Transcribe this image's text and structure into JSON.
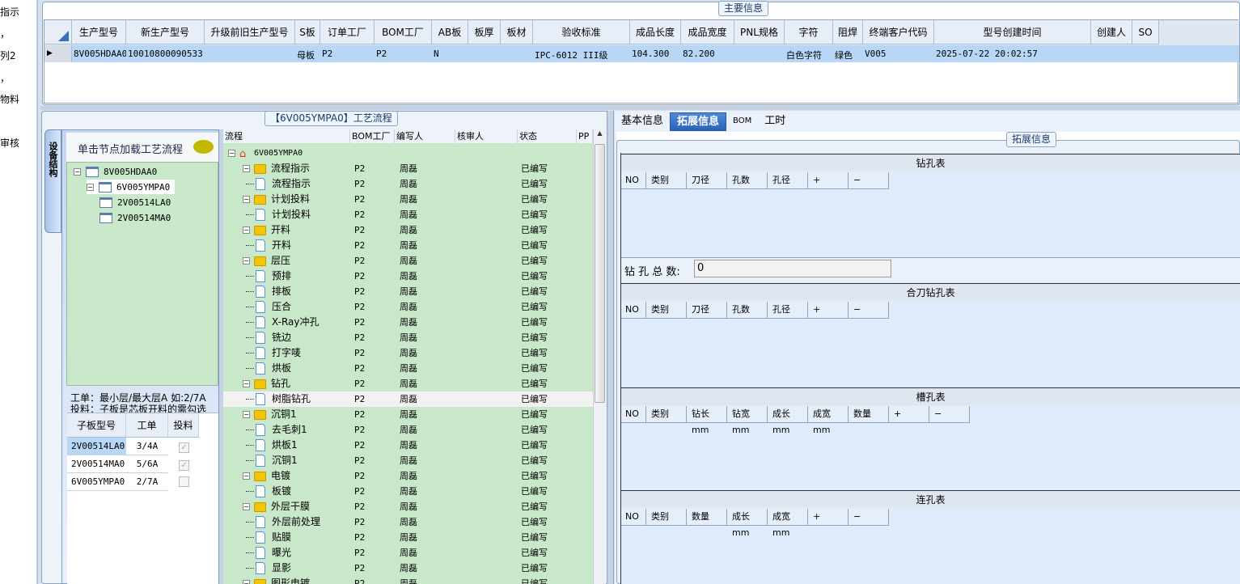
{
  "left_menu": [
    "指示",
    "，",
    "列2",
    "，",
    "物料",
    "审核"
  ],
  "main_info": {
    "title": "主要信息",
    "columns": [
      "生产型号",
      "新生产型号",
      "升级前旧生产型号",
      "S板",
      "订单工厂",
      "BOM工厂",
      "AB板",
      "板厚",
      "板材",
      "验收标准",
      "成品长度",
      "成品宽度",
      "PNL规格",
      "字符",
      "阻焊",
      "终端客户代码",
      "型号创建时间",
      "创建人",
      "SO"
    ],
    "row": [
      "8V005HDAA0",
      "10010800090533",
      "",
      "母板",
      "P2",
      "P2",
      "N",
      "",
      "",
      "IPC-6012 III级",
      "104.300",
      "82.200",
      "",
      "白色字符",
      "绿色",
      "V005",
      "2025-07-22 20:02:57",
      "",
      ""
    ]
  },
  "process": {
    "title": "【6V005YMPA0】工艺流程",
    "side_tab": "设备结构",
    "hint": "单击节点加载工艺流程",
    "tree": [
      "8V005HDAA0",
      "6V005YMPA0",
      "2V00514LA0",
      "2V00514MA0"
    ],
    "note1": "工单：最小层/最大层A 如:2/7A",
    "note2": "投料：子板是芯板开料的需勾选",
    "sub_columns": [
      "子板型号",
      "工单",
      "投料"
    ],
    "sub_rows": [
      {
        "model": "2V00514LA0",
        "order": "3/4A",
        "feed": true
      },
      {
        "model": "2V00514MA0",
        "order": "5/6A",
        "feed": true
      },
      {
        "model": "6V005YMPA0",
        "order": "2/7A",
        "feed": false
      }
    ],
    "flow_columns": [
      "流程",
      "BOM工厂",
      "编写人",
      "核审人",
      "状态",
      "PP"
    ],
    "flow_rows": [
      {
        "l": 0,
        "t": "root",
        "n": "6V005YMPA0",
        "b": "",
        "w": "",
        "s": ""
      },
      {
        "l": 1,
        "t": "folder",
        "n": "流程指示",
        "b": "P2",
        "w": "周磊",
        "s": "已编写"
      },
      {
        "l": 2,
        "t": "file",
        "n": "流程指示",
        "b": "P2",
        "w": "周磊",
        "s": "已编写"
      },
      {
        "l": 1,
        "t": "folder",
        "n": "计划投料",
        "b": "P2",
        "w": "周磊",
        "s": "已编写"
      },
      {
        "l": 2,
        "t": "file",
        "n": "计划投料",
        "b": "P2",
        "w": "周磊",
        "s": "已编写"
      },
      {
        "l": 1,
        "t": "folder",
        "n": "开料",
        "b": "P2",
        "w": "周磊",
        "s": "已编写"
      },
      {
        "l": 2,
        "t": "file",
        "n": "开料",
        "b": "P2",
        "w": "周磊",
        "s": "已编写"
      },
      {
        "l": 1,
        "t": "folder",
        "n": "层压",
        "b": "P2",
        "w": "周磊",
        "s": "已编写"
      },
      {
        "l": 2,
        "t": "file",
        "n": "预排",
        "b": "P2",
        "w": "周磊",
        "s": "已编写"
      },
      {
        "l": 2,
        "t": "file",
        "n": "排板",
        "b": "P2",
        "w": "周磊",
        "s": "已编写"
      },
      {
        "l": 2,
        "t": "file",
        "n": "压合",
        "b": "P2",
        "w": "周磊",
        "s": "已编写"
      },
      {
        "l": 2,
        "t": "file",
        "n": "X-Ray冲孔",
        "b": "P2",
        "w": "周磊",
        "s": "已编写"
      },
      {
        "l": 2,
        "t": "file",
        "n": "铣边",
        "b": "P2",
        "w": "周磊",
        "s": "已编写"
      },
      {
        "l": 2,
        "t": "file",
        "n": "打字唛",
        "b": "P2",
        "w": "周磊",
        "s": "已编写"
      },
      {
        "l": 2,
        "t": "file",
        "n": "烘板",
        "b": "P2",
        "w": "周磊",
        "s": "已编写"
      },
      {
        "l": 1,
        "t": "folder",
        "n": "钻孔",
        "b": "P2",
        "w": "周磊",
        "s": "已编写"
      },
      {
        "l": 2,
        "t": "file",
        "n": "树脂钻孔",
        "b": "P2",
        "w": "周磊",
        "s": "已编写",
        "sel": true
      },
      {
        "l": 1,
        "t": "folder",
        "n": "沉铜1",
        "b": "P2",
        "w": "周磊",
        "s": "已编写"
      },
      {
        "l": 2,
        "t": "file",
        "n": "去毛刺1",
        "b": "P2",
        "w": "周磊",
        "s": "已编写"
      },
      {
        "l": 2,
        "t": "file",
        "n": "烘板1",
        "b": "P2",
        "w": "周磊",
        "s": "已编写"
      },
      {
        "l": 2,
        "t": "file",
        "n": "沉铜1",
        "b": "P2",
        "w": "周磊",
        "s": "已编写"
      },
      {
        "l": 1,
        "t": "folder",
        "n": "电镀",
        "b": "P2",
        "w": "周磊",
        "s": "已编写"
      },
      {
        "l": 2,
        "t": "file",
        "n": "板镀",
        "b": "P2",
        "w": "周磊",
        "s": "已编写"
      },
      {
        "l": 1,
        "t": "folder",
        "n": "外层干膜",
        "b": "P2",
        "w": "周磊",
        "s": "已编写"
      },
      {
        "l": 2,
        "t": "file",
        "n": "外层前处理",
        "b": "P2",
        "w": "周磊",
        "s": "已编写"
      },
      {
        "l": 2,
        "t": "file",
        "n": "贴膜",
        "b": "P2",
        "w": "周磊",
        "s": "已编写"
      },
      {
        "l": 2,
        "t": "file",
        "n": "曝光",
        "b": "P2",
        "w": "周磊",
        "s": "已编写"
      },
      {
        "l": 2,
        "t": "file",
        "n": "显影",
        "b": "P2",
        "w": "周磊",
        "s": "已编写"
      },
      {
        "l": 1,
        "t": "folder",
        "n": "图形电镀",
        "b": "P2",
        "w": "周磊",
        "s": "已编写"
      }
    ]
  },
  "right": {
    "tabs": [
      "基本信息",
      "拓展信息",
      "BOM",
      "工时"
    ],
    "active_tab": 1,
    "group_title": "拓展信息",
    "drill": {
      "title": "钻孔表",
      "cols": [
        "NO",
        "类别",
        "刀径",
        "孔数",
        "孔径",
        "+",
        "−"
      ]
    },
    "drill_total_label": "钻 孔 总 数:",
    "drill_total_value": "0",
    "combo": {
      "title": "合刀钻孔表",
      "cols": [
        "NO",
        "类别",
        "刀径",
        "孔数",
        "孔径",
        "+",
        "−"
      ]
    },
    "slot": {
      "title": "槽孔表",
      "cols": [
        "NO",
        "类别",
        "钻长mm",
        "钻宽mm",
        "成长mm",
        "成宽mm",
        "数量",
        "+",
        "−"
      ]
    },
    "link": {
      "title": "连孔表",
      "cols": [
        "NO",
        "类别",
        "数量",
        "成长mm",
        "成宽mm",
        "+",
        "−"
      ]
    }
  }
}
